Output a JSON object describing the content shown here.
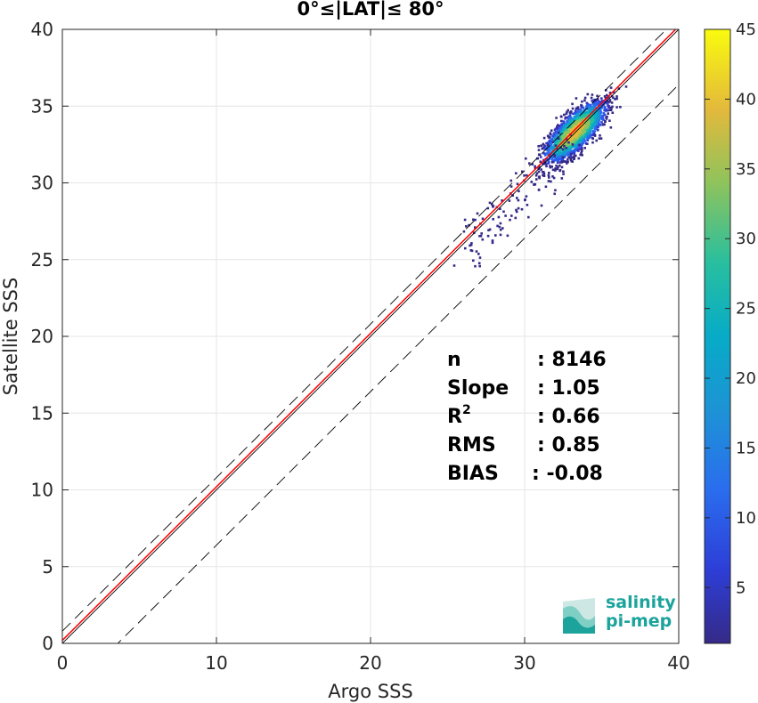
{
  "chart_data": {
    "type": "scatter",
    "title": "0°≤|LAT|≤ 80°",
    "xlabel": "Argo SSS",
    "ylabel": "Satellite SSS",
    "xlim": [
      0,
      40
    ],
    "ylim": [
      0,
      40
    ],
    "xticks": [
      0,
      10,
      20,
      30,
      40
    ],
    "yticks": [
      0,
      5,
      10,
      15,
      20,
      25,
      30,
      35,
      40
    ],
    "grid": true,
    "density_center": {
      "x": 33.2,
      "y": 33.4
    },
    "density_spread": {
      "major": 1.25,
      "minor": 0.45
    },
    "lines": {
      "identity": {
        "slope": 1,
        "intercept": 0,
        "color": "#000000",
        "style": "solid"
      },
      "fit": {
        "slope": 1.0,
        "intercept": 0.2,
        "color": "#ff0000",
        "style": "solid"
      },
      "upper_band": {
        "slope": 1,
        "intercept": 0.8,
        "color": "#000000",
        "style": "dashed"
      },
      "lower_band": {
        "slope": 1,
        "intercept": -3.6,
        "color": "#000000",
        "style": "dashed"
      }
    },
    "colorbar": {
      "range": [
        1,
        45
      ],
      "ticks": [
        5,
        10,
        15,
        20,
        25,
        30,
        35,
        40,
        45
      ],
      "colormap": "parula"
    },
    "stats": [
      {
        "key": "n",
        "sep": ":",
        "value": "8146"
      },
      {
        "key": "Slope",
        "sep": ":",
        "value": "1.05"
      },
      {
        "key": "R",
        "sup": "2",
        "sep": ":",
        "value": "0.66"
      },
      {
        "key": "RMS",
        "sep": ":",
        "value": "0.85"
      },
      {
        "key": "BIAS",
        "sep": ":",
        "value": "-0.08"
      }
    ]
  },
  "logo": {
    "line1": "salinity",
    "line2": "pi-mep",
    "color": "#1ba39c"
  }
}
